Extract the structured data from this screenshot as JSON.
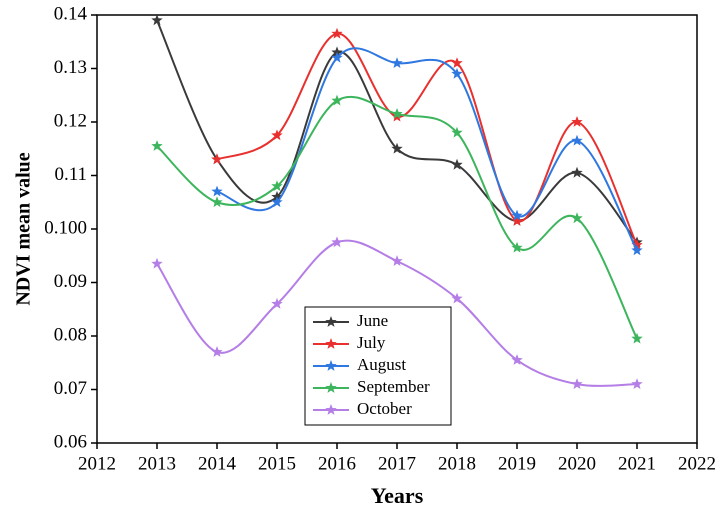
{
  "chart_data": {
    "type": "line",
    "x_label": "Years",
    "y_label": "NDVI mean value",
    "x": [
      2013,
      2014,
      2015,
      2016,
      2017,
      2018,
      2019,
      2020,
      2021
    ],
    "series": [
      {
        "name": "June",
        "color": "#3a3a3a",
        "values": [
          0.139,
          0.113,
          0.106,
          0.133,
          0.115,
          0.112,
          0.1015,
          0.1105,
          0.0975
        ]
      },
      {
        "name": "July",
        "color": "#e8302f",
        "values": [
          null,
          0.113,
          0.1175,
          0.1365,
          0.121,
          0.131,
          0.1015,
          0.12,
          0.097
        ]
      },
      {
        "name": "August",
        "color": "#2f78e0",
        "values": [
          null,
          0.107,
          0.105,
          0.132,
          0.131,
          0.129,
          0.1025,
          0.1165,
          0.096
        ]
      },
      {
        "name": "September",
        "color": "#3cb55c",
        "values": [
          0.1155,
          0.105,
          0.108,
          0.124,
          0.1215,
          0.118,
          0.0965,
          0.102,
          0.0795
        ]
      },
      {
        "name": "October",
        "color": "#b47ee6",
        "values": [
          0.0935,
          0.077,
          0.086,
          0.0975,
          0.094,
          0.087,
          0.0755,
          0.071,
          0.071
        ]
      }
    ],
    "xlim": [
      2012,
      2022
    ],
    "xticks": [
      2012,
      2013,
      2014,
      2015,
      2016,
      2017,
      2018,
      2019,
      2020,
      2021,
      2022
    ],
    "ylim": [
      0.06,
      0.14
    ],
    "yticks": [
      {
        "value": 0.06,
        "label": "0.06"
      },
      {
        "value": 0.07,
        "label": "0.07"
      },
      {
        "value": 0.08,
        "label": "0.08"
      },
      {
        "value": 0.09,
        "label": "0.09"
      },
      {
        "value": 0.1,
        "label": "0.100"
      },
      {
        "value": 0.11,
        "label": "0.11"
      },
      {
        "value": 0.12,
        "label": "0.12"
      },
      {
        "value": 0.13,
        "label": "0.13"
      },
      {
        "value": 0.14,
        "label": "0.14"
      }
    ],
    "legend": "lower-center",
    "smooth": true
  }
}
